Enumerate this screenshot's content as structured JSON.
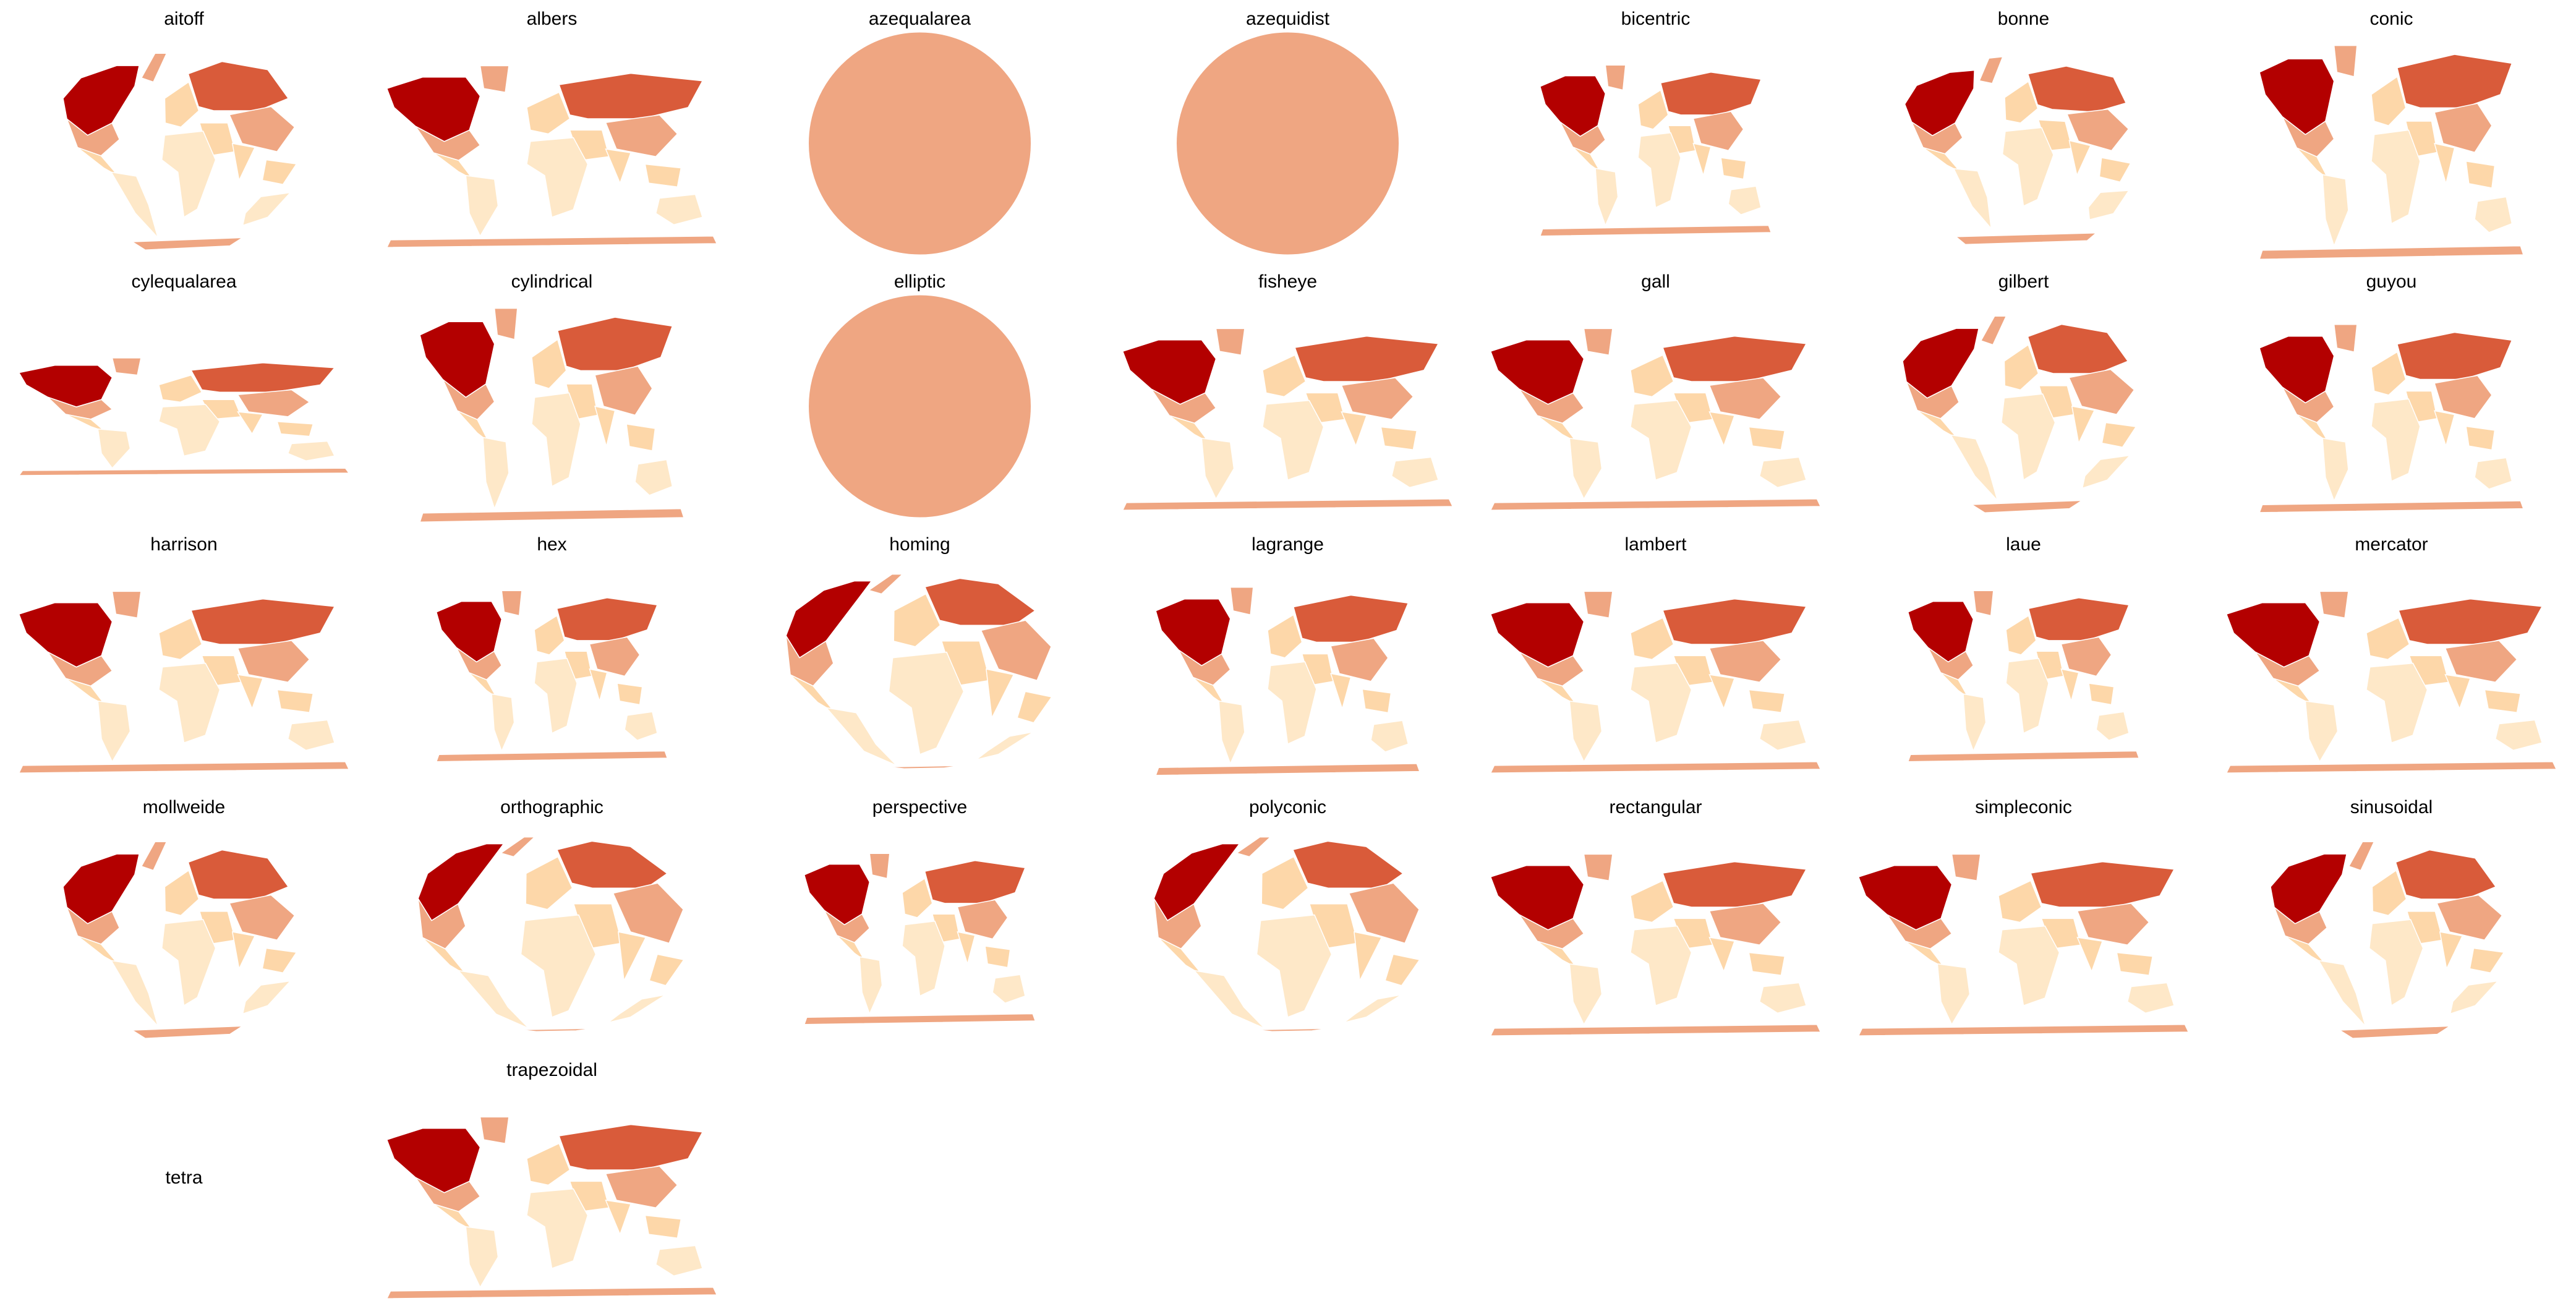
{
  "figure": {
    "colors": {
      "level1": "#FEE8C8",
      "level2": "#FDD7A9",
      "level3": "#EFA682",
      "level4": "#D95B3A",
      "level5": "#B30000",
      "border": "#FFFFFF",
      "background": "#FFFFFF"
    },
    "panels": [
      {
        "name": "aitoff",
        "kind": "ellipse",
        "col": 0,
        "row": 0
      },
      {
        "name": "albers",
        "kind": "flat",
        "col": 1,
        "row": 0
      },
      {
        "name": "azequalarea",
        "kind": "disc",
        "col": 2,
        "row": 0
      },
      {
        "name": "azequidist",
        "kind": "disc",
        "col": 3,
        "row": 0
      },
      {
        "name": "bicentric",
        "kind": "broken",
        "col": 4,
        "row": 0
      },
      {
        "name": "bonne",
        "kind": "heart",
        "col": 5,
        "row": 0
      },
      {
        "name": "conic",
        "kind": "tall",
        "col": 6,
        "row": 0
      },
      {
        "name": "cylequalarea",
        "kind": "flatwide",
        "col": 0,
        "row": 1
      },
      {
        "name": "cylindrical",
        "kind": "tall",
        "col": 1,
        "row": 1
      },
      {
        "name": "elliptic",
        "kind": "disc",
        "col": 2,
        "row": 1
      },
      {
        "name": "fisheye",
        "kind": "flat",
        "col": 3,
        "row": 1
      },
      {
        "name": "gall",
        "kind": "flat",
        "col": 4,
        "row": 1
      },
      {
        "name": "gilbert",
        "kind": "ellipse",
        "col": 5,
        "row": 1
      },
      {
        "name": "guyou",
        "kind": "square",
        "col": 6,
        "row": 1
      },
      {
        "name": "harrison",
        "kind": "flat",
        "col": 0,
        "row": 2
      },
      {
        "name": "hex",
        "kind": "broken",
        "col": 1,
        "row": 2
      },
      {
        "name": "homing",
        "kind": "globe",
        "col": 2,
        "row": 2
      },
      {
        "name": "lagrange",
        "kind": "square",
        "col": 3,
        "row": 2
      },
      {
        "name": "lambert",
        "kind": "flat",
        "col": 4,
        "row": 2
      },
      {
        "name": "laue",
        "kind": "broken",
        "col": 5,
        "row": 2
      },
      {
        "name": "mercator",
        "kind": "flat",
        "col": 6,
        "row": 2
      },
      {
        "name": "mollweide",
        "kind": "ellipse",
        "col": 0,
        "row": 3
      },
      {
        "name": "orthographic",
        "kind": "globe",
        "col": 1,
        "row": 3
      },
      {
        "name": "perspective",
        "kind": "broken",
        "col": 2,
        "row": 3
      },
      {
        "name": "polyconic",
        "kind": "globe",
        "col": 3,
        "row": 3
      },
      {
        "name": "rectangular",
        "kind": "flat",
        "col": 4,
        "row": 3
      },
      {
        "name": "simpleconic",
        "kind": "flat",
        "col": 5,
        "row": 3
      },
      {
        "name": "sinusoidal",
        "kind": "ellipse",
        "col": 6,
        "row": 3
      },
      {
        "name": "tetra",
        "kind": "empty",
        "col": 0,
        "row": 4
      },
      {
        "name": "trapezoidal",
        "kind": "flat",
        "col": 1,
        "row": 4
      }
    ]
  }
}
